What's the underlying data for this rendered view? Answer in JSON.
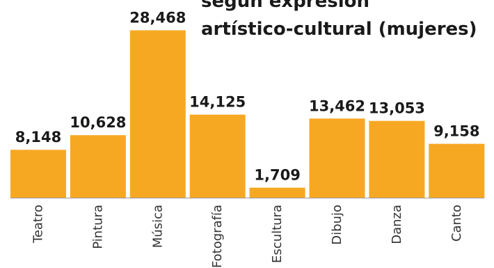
{
  "chart_data": {
    "type": "bar",
    "title_lines": [
      "según expresión",
      "artístico-cultural (mujeres)"
    ],
    "categories": [
      "Teatro",
      "Pintura",
      "Música",
      "Fotografía",
      "Escultura",
      "Dibujo",
      "Danza",
      "Canto"
    ],
    "values": [
      8148,
      10628,
      28468,
      14125,
      1709,
      13462,
      13053,
      9158
    ],
    "value_labels": [
      "8,148",
      "10,628",
      "28,468",
      "14,125",
      "1,709",
      "13,462",
      "13,053",
      "9,158"
    ],
    "bar_color": "#F7A823",
    "baseline_color": "#999999",
    "text_color": "#1a1a1a",
    "grid": false,
    "legend": "none"
  }
}
